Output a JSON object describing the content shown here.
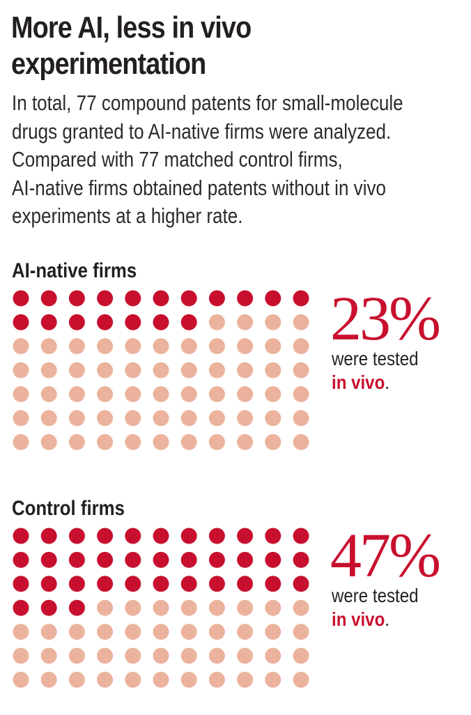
{
  "title_line1": "More AI, less in vivo",
  "title_line2": "experimentation",
  "subtitle_lines": [
    "In total, 77 compound patents for small-molecule",
    "drugs granted to AI-native firms were analyzed.",
    "Compared with 77 matched control firms,",
    "AI-native firms obtained patents without in vivo",
    "experiments at a higher rate."
  ],
  "colors": {
    "tested": "#c8102e",
    "not_tested": "#ebb39d",
    "accent": "#c8102e"
  },
  "chart_data": [
    {
      "type": "waffle",
      "label": "AI-native firms",
      "total": 77,
      "tested": 18,
      "percent": 23,
      "percent_label": "23%",
      "caption_prefix": "were tested",
      "caption_highlight": "in vivo",
      "caption_suffix": "."
    },
    {
      "type": "waffle",
      "label": "Control firms",
      "total": 77,
      "tested": 36,
      "percent": 47,
      "percent_label": "47%",
      "caption_prefix": "were tested",
      "caption_highlight": "in vivo",
      "caption_suffix": "."
    }
  ]
}
